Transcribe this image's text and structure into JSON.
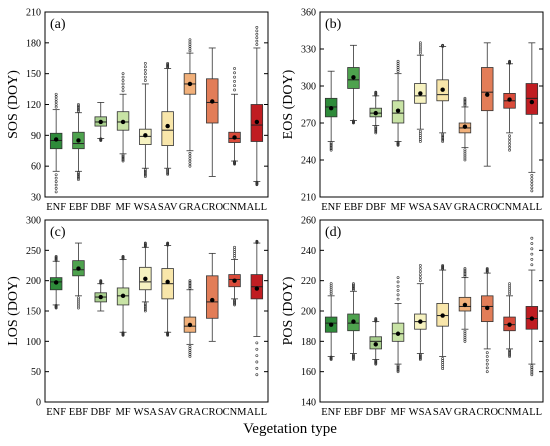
{
  "figure": {
    "xlabel": "Vegetation type"
  },
  "colors": {
    "ENF": "#2e8b3a",
    "EBF": "#4ea24e",
    "DBF": "#a8cf8e",
    "MF": "#c8e3a5",
    "WSA": "#f6f2c0",
    "SAV": "#f8e6aa",
    "GRA": "#f1b07a",
    "CRO": "#e27d58",
    "CNM": "#d94b3a",
    "ALL": "#c01d22"
  },
  "chart_data": [
    {
      "type": "box",
      "panel_tag": "(a)",
      "ylabel": "SOS (DOY)",
      "ylim": [
        30,
        210
      ],
      "yticks": [
        30,
        60,
        90,
        120,
        150,
        180,
        210
      ],
      "categories": [
        "ENF",
        "EBF",
        "DBF",
        "MF",
        "WSA",
        "SAV",
        "GRA",
        "CRO",
        "CNM",
        "ALL"
      ],
      "whisker_low": [
        55,
        55,
        87,
        72,
        58,
        58,
        75,
        50,
        65,
        45
      ],
      "q1": [
        77,
        77,
        99,
        95,
        81,
        80,
        130,
        102,
        83,
        84
      ],
      "median": [
        85,
        82,
        103,
        103,
        89,
        95,
        140,
        122,
        87,
        100
      ],
      "q3": [
        92,
        93,
        108,
        113,
        96,
        113,
        150,
        145,
        93,
        120
      ],
      "whisker_high": [
        115,
        112,
        122,
        130,
        140,
        155,
        170,
        175,
        130,
        175
      ],
      "mean": [
        86,
        85,
        103,
        103,
        90,
        99,
        140,
        123,
        88,
        103
      ],
      "flier_low": [
        35,
        47,
        85,
        65,
        50,
        52,
        60,
        50,
        62,
        42
      ],
      "flier_high": [
        130,
        120,
        122,
        150,
        160,
        160,
        183,
        175,
        155,
        195
      ]
    },
    {
      "type": "box",
      "panel_tag": "(b)",
      "ylabel": "EOS (DOY)",
      "ylim": [
        210,
        360
      ],
      "yticks": [
        210,
        240,
        270,
        300,
        330,
        360
      ],
      "categories": [
        "ENF",
        "EBF",
        "DBF",
        "MF",
        "WSA",
        "SAV",
        "GRA",
        "CRO",
        "CNM",
        "ALL"
      ],
      "whisker_low": [
        255,
        272,
        268,
        255,
        265,
        262,
        250,
        235,
        262,
        230
      ],
      "q1": [
        275,
        298,
        275,
        270,
        286,
        288,
        262,
        280,
        282,
        277
      ],
      "median": [
        283,
        305,
        278,
        278,
        292,
        293,
        266,
        295,
        288,
        290
      ],
      "q3": [
        290,
        315,
        282,
        288,
        302,
        305,
        270,
        315,
        294,
        302
      ],
      "whisker_high": [
        312,
        333,
        292,
        310,
        325,
        332,
        283,
        335,
        318,
        335
      ],
      "mean": [
        282,
        307,
        278,
        280,
        294,
        297,
        267,
        293,
        289,
        287
      ],
      "flier_low": [
        248,
        270,
        262,
        252,
        255,
        255,
        240,
        235,
        248,
        215
      ],
      "flier_high": [
        312,
        333,
        295,
        320,
        335,
        333,
        290,
        335,
        320,
        335
      ]
    },
    {
      "type": "box",
      "panel_tag": "(c)",
      "ylabel": "LOS (DOY)",
      "ylim": [
        0,
        300
      ],
      "yticks": [
        0,
        50,
        100,
        150,
        200,
        250,
        300
      ],
      "categories": [
        "ENF",
        "EBF",
        "DBF",
        "MF",
        "WSA",
        "SAV",
        "GRA",
        "CRO",
        "CNM",
        "ALL"
      ],
      "whisker_low": [
        160,
        175,
        150,
        115,
        165,
        115,
        95,
        100,
        170,
        108
      ],
      "q1": [
        185,
        208,
        165,
        160,
        185,
        170,
        115,
        138,
        190,
        170
      ],
      "median": [
        198,
        218,
        173,
        175,
        198,
        195,
        125,
        165,
        202,
        190
      ],
      "q3": [
        205,
        233,
        180,
        188,
        222,
        220,
        140,
        208,
        210,
        210
      ],
      "whisker_high": [
        232,
        262,
        195,
        235,
        255,
        258,
        185,
        245,
        235,
        262
      ],
      "mean": [
        197,
        220,
        173,
        175,
        203,
        198,
        127,
        168,
        200,
        187
      ],
      "flier_low": [
        155,
        155,
        150,
        110,
        150,
        110,
        75,
        100,
        160,
        45
      ],
      "flier_high": [
        240,
        262,
        200,
        240,
        262,
        262,
        200,
        245,
        255,
        265
      ]
    },
    {
      "type": "box",
      "panel_tag": "(d)",
      "ylabel": "POS (DOY)",
      "ylim": [
        140,
        260
      ],
      "yticks": [
        140,
        160,
        180,
        200,
        220,
        240,
        260
      ],
      "categories": [
        "ENF",
        "EBF",
        "DBF",
        "MF",
        "WSA",
        "SAV",
        "GRA",
        "CRO",
        "CNM",
        "ALL"
      ],
      "whisker_low": [
        170,
        172,
        168,
        165,
        172,
        170,
        188,
        175,
        175,
        165
      ],
      "q1": [
        186,
        187,
        175,
        180,
        188,
        190,
        200,
        193,
        187,
        188
      ],
      "median": [
        192,
        192,
        180,
        185,
        193,
        197,
        203,
        203,
        191,
        195
      ],
      "q3": [
        196,
        198,
        183,
        192,
        198,
        205,
        209,
        210,
        196,
        203
      ],
      "whisker_high": [
        210,
        213,
        193,
        205,
        218,
        227,
        222,
        225,
        210,
        227
      ],
      "mean": [
        191,
        193,
        178,
        185,
        193,
        197,
        204,
        202,
        191,
        195
      ],
      "flier_low": [
        168,
        168,
        165,
        160,
        168,
        162,
        180,
        160,
        170,
        158
      ],
      "flier_high": [
        218,
        218,
        195,
        222,
        230,
        230,
        228,
        228,
        218,
        248
      ]
    }
  ]
}
